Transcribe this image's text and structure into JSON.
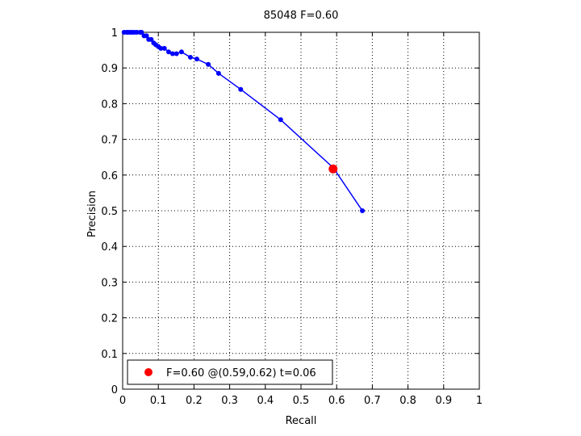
{
  "chart_data": {
    "type": "line",
    "title": "85048 F=0.60",
    "xlabel": "Recall",
    "ylabel": "Precision",
    "xlim": [
      0,
      1
    ],
    "ylim": [
      0,
      1
    ],
    "xticks": [
      "0",
      "0.1",
      "0.2",
      "0.3",
      "0.4",
      "0.5",
      "0.6",
      "0.7",
      "0.8",
      "0.9",
      "1"
    ],
    "yticks": [
      "0",
      "0.1",
      "0.2",
      "0.3",
      "0.4",
      "0.5",
      "0.6",
      "0.7",
      "0.8",
      "0.9",
      "1"
    ],
    "grid": true,
    "series": [
      {
        "color": "#0000ff",
        "x": [
          0.004,
          0.011,
          0.016,
          0.022,
          0.027,
          0.033,
          0.04,
          0.049,
          0.053,
          0.06,
          0.067,
          0.073,
          0.08,
          0.087,
          0.093,
          0.1,
          0.107,
          0.117,
          0.129,
          0.14,
          0.151,
          0.165,
          0.19,
          0.208,
          0.24,
          0.269,
          0.331,
          0.443,
          0.591,
          0.672
        ],
        "y": [
          1.0,
          1.0,
          1.0,
          1.0,
          1.0,
          1.0,
          1.0,
          1.0,
          1.0,
          0.99,
          0.99,
          0.98,
          0.98,
          0.97,
          0.965,
          0.96,
          0.955,
          0.955,
          0.945,
          0.94,
          0.94,
          0.945,
          0.93,
          0.925,
          0.91,
          0.885,
          0.84,
          0.755,
          0.62,
          0.5
        ]
      }
    ],
    "best_point": {
      "x": 0.59,
      "y": 0.617,
      "color": "#ff0000",
      "label": "F=0.60 @(0.59,0.62) t=0.06"
    },
    "legend_position": "bottom-left"
  }
}
